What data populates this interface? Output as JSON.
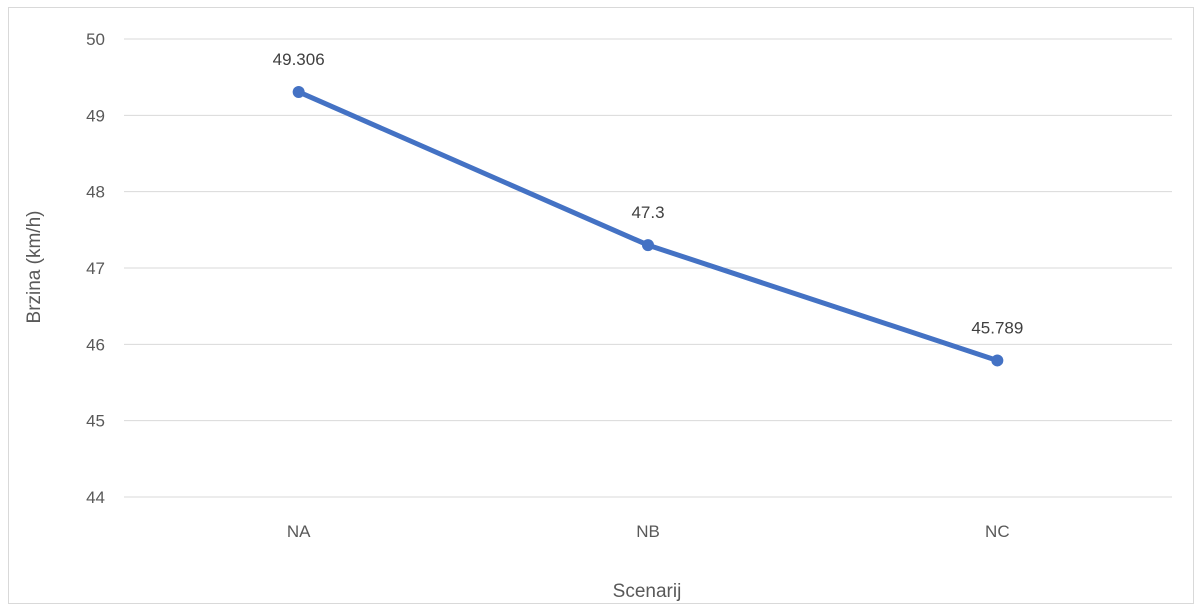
{
  "chart_data": {
    "type": "line",
    "categories": [
      "NA",
      "NB",
      "NC"
    ],
    "series": [
      {
        "values": [
          49.306,
          47.3,
          45.789
        ],
        "color": "#4472c4"
      }
    ],
    "data_labels": [
      "49.306",
      "47.3",
      "45.789"
    ],
    "xlabel": "Scenarij",
    "ylabel": "Brzina (km/h)",
    "ylim": [
      44,
      50
    ],
    "yticks": [
      44,
      45,
      46,
      47,
      48,
      49,
      50
    ],
    "grid": true,
    "legend": "none"
  }
}
